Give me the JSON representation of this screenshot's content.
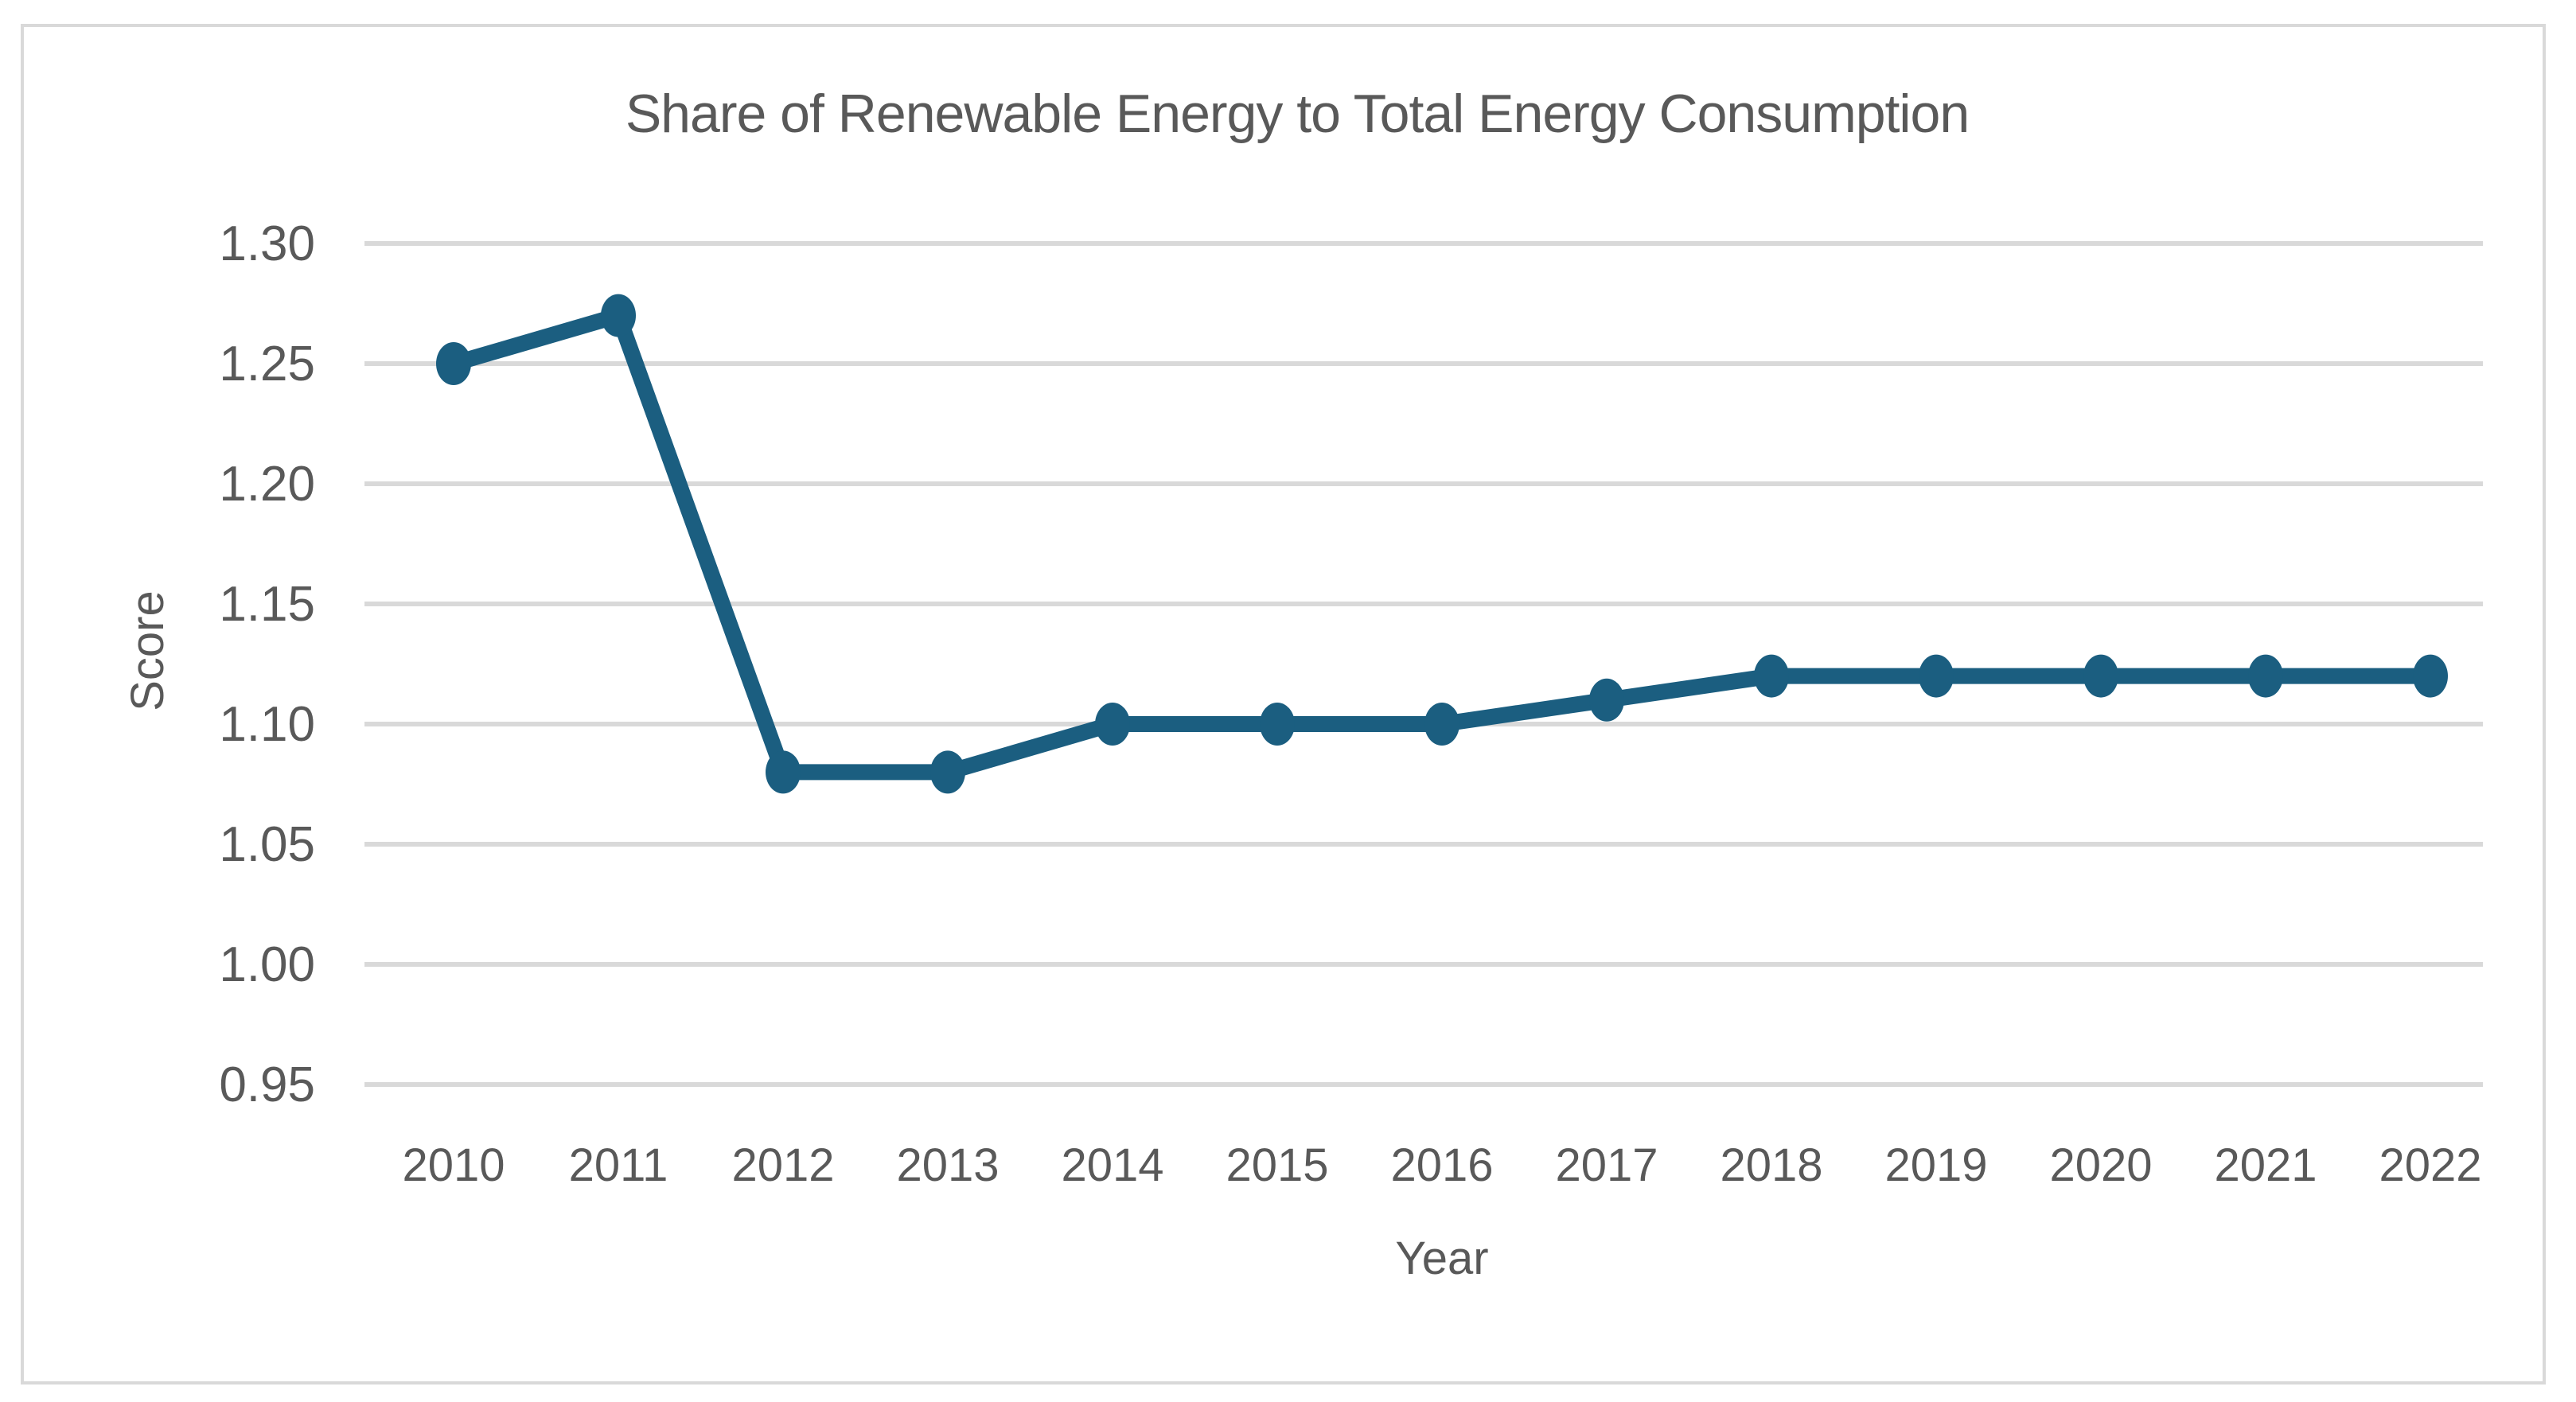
{
  "chart_data": {
    "type": "line",
    "title": "Share of Renewable Energy to Total Energy Consumption",
    "xlabel": "Year",
    "ylabel": "Score",
    "categories": [
      "2010",
      "2011",
      "2012",
      "2013",
      "2014",
      "2015",
      "2016",
      "2017",
      "2018",
      "2019",
      "2020",
      "2021",
      "2022"
    ],
    "series": [
      {
        "name": "Share of Renewable Energy to Total Energy Consumption",
        "values": [
          1.25,
          1.27,
          1.08,
          1.08,
          1.1,
          1.1,
          1.1,
          1.11,
          1.12,
          1.12,
          1.12,
          1.12,
          1.12
        ]
      }
    ],
    "ylim": [
      0.95,
      1.3
    ],
    "yticks": [
      "1.30",
      "1.25",
      "1.20",
      "1.15",
      "1.10",
      "1.05",
      "1.00",
      "0.95"
    ],
    "grid": "horizontal-only",
    "legend": "none",
    "marker": "filled-circle",
    "colors": {
      "line": "#1b5e80",
      "marker": "#1b5e80",
      "gridline": "#d9d9d9",
      "text": "#595959",
      "frame_border": "#d9d9d9",
      "background": "#ffffff"
    }
  }
}
